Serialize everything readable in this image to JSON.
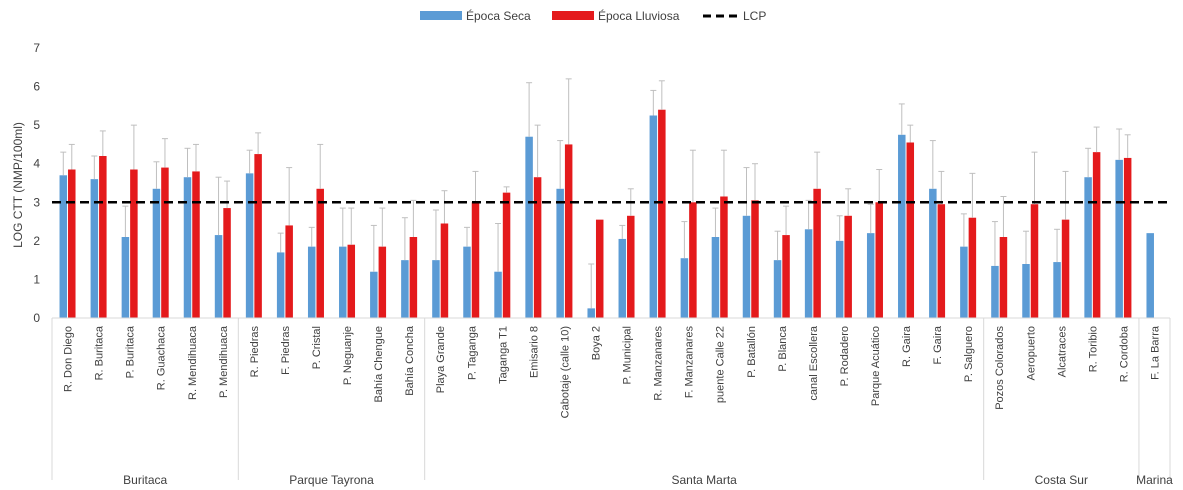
{
  "colors": {
    "dry": "#5b9bd5",
    "wet": "#e41a1c",
    "lcp": "#000000",
    "error": "#bfbfbf",
    "axis": "#d9d9d9",
    "text": "#404040"
  },
  "chart_data": {
    "type": "bar",
    "title": "",
    "ylabel": "LOG CTT (NMP/100ml)",
    "xlabel": "",
    "ylim": [
      0,
      7
    ],
    "yticks": [
      "0",
      "1",
      "2",
      "3",
      "4",
      "5",
      "6",
      "7"
    ],
    "grid": false,
    "legend_position": "top",
    "legend": [
      {
        "label": "Época Seca",
        "kind": "bar"
      },
      {
        "label": "Época Lluviosa",
        "kind": "bar"
      },
      {
        "label": "LCP",
        "kind": "dashed-line"
      }
    ],
    "reference_line": {
      "name": "LCP",
      "value": 3.0
    },
    "categories": [
      "R. Don Diego",
      "R. Buritaca",
      "P. Buritaca",
      "R. Guachaca",
      "R. Mendihuaca",
      "P. Mendihuaca",
      "R. Piedras",
      "F. Piedras",
      "P. Cristal",
      "P. Neguanje",
      "Bahía Chengue",
      "Bahía Concha",
      "Playa Grande",
      "P. Taganga",
      "Taganga T1",
      "Emisario 8",
      "Cabotaje (calle 10)",
      "Boya 2",
      "P. Municipal",
      "R. Manzanares",
      "F. Manzanares",
      "puente Calle 22",
      "P. Batallón",
      "P. Blanca",
      "canal Escollera",
      "P. Rodadero",
      "Parque Acuático",
      "R. Gaira",
      "F. Gaira",
      "P. Salguero",
      "Pozos Colorados",
      "Aeropuerto",
      "Alcatraces",
      "R. Toribio",
      "R. Cordoba",
      "F. La Barra"
    ],
    "groups": [
      {
        "label": "Buritaca",
        "count": 6
      },
      {
        "label": "Parque Tayrona",
        "count": 6
      },
      {
        "label": "Santa Marta",
        "count": 18
      },
      {
        "label": "Costa Sur",
        "count": 5
      },
      {
        "label": "Marina",
        "count": 1
      }
    ],
    "series": [
      {
        "name": "Época Seca",
        "values": [
          3.7,
          3.6,
          2.1,
          3.35,
          3.65,
          2.15,
          3.75,
          1.7,
          1.85,
          1.85,
          1.2,
          1.5,
          1.5,
          1.85,
          1.2,
          4.7,
          3.35,
          0.25,
          2.05,
          5.25,
          1.55,
          2.1,
          2.65,
          1.5,
          2.3,
          2.0,
          2.2,
          4.75,
          3.35,
          1.85,
          1.35,
          1.4,
          1.45,
          3.65,
          4.1,
          2.2
        ],
        "error": [
          0.6,
          0.6,
          0.8,
          0.7,
          0.75,
          1.5,
          0.6,
          0.5,
          0.5,
          1.0,
          1.2,
          1.1,
          1.3,
          0.5,
          1.25,
          1.4,
          1.25,
          1.15,
          0.35,
          0.65,
          0.95,
          0.75,
          1.25,
          0.75,
          0.75,
          0.65,
          0.75,
          0.8,
          1.25,
          0.85,
          1.15,
          0.85,
          0.85,
          0.75,
          0.8,
          0
        ]
      },
      {
        "name": "Época Lluviosa",
        "values": [
          3.85,
          4.2,
          3.85,
          3.9,
          3.8,
          2.85,
          4.25,
          2.4,
          3.35,
          1.9,
          1.85,
          2.1,
          2.45,
          3.0,
          3.25,
          3.65,
          4.5,
          2.55,
          2.65,
          5.4,
          3.0,
          3.15,
          3.05,
          2.15,
          3.35,
          2.65,
          3.0,
          4.55,
          2.95,
          2.6,
          2.1,
          2.95,
          2.55,
          4.3,
          4.15,
          null
        ],
        "error": [
          0.65,
          0.65,
          1.15,
          0.75,
          0.7,
          0.7,
          0.55,
          1.5,
          1.15,
          0.95,
          1.0,
          0.95,
          0.85,
          0.8,
          0.15,
          1.35,
          1.7,
          0,
          0.7,
          0.75,
          1.35,
          1.2,
          0.95,
          0.75,
          0.95,
          0.7,
          0.85,
          0.45,
          0.85,
          1.15,
          1.05,
          1.35,
          1.25,
          0.65,
          0.6,
          0
        ]
      }
    ]
  }
}
